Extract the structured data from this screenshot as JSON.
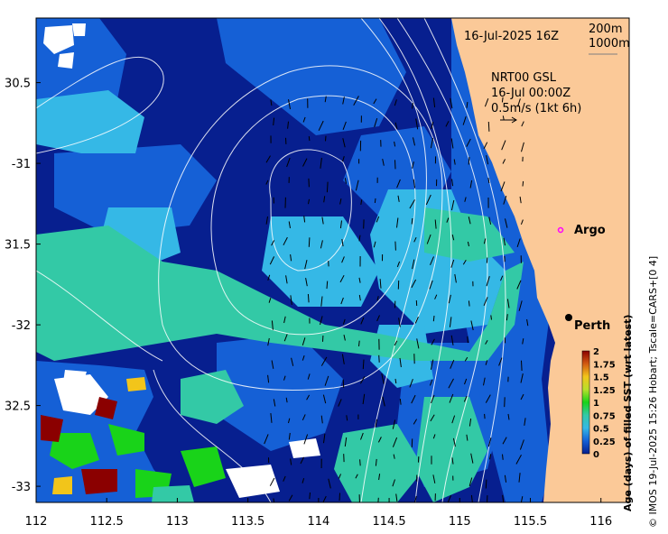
{
  "map": {
    "lon_range": [
      112,
      116.2
    ],
    "lat_range": [
      -33.1,
      -30.1
    ],
    "x_ticks": [
      112,
      112.5,
      113,
      113.5,
      114,
      114.5,
      115,
      115.5,
      116
    ],
    "x_tick_labels": [
      "112",
      "112.5",
      "113",
      "113.5",
      "114",
      "114.5",
      "115",
      "115.5",
      "116"
    ],
    "y_ticks": [
      -30.5,
      -31,
      -31.5,
      -32,
      -32.5,
      -33
    ],
    "y_tick_labels": [
      "30.5",
      "-31",
      "31.5",
      "-32",
      "32.5",
      "-33"
    ],
    "coast_lon": 115.65
  },
  "header": {
    "date_label": "16-Jul-2025 16Z",
    "depth_200": "200m",
    "depth_1000": "1000m",
    "current_line1": "NRT00 GSL",
    "current_line2": "16-Jul 00:00Z",
    "current_line3": "0.5m/s (1kt 6h)"
  },
  "places": [
    {
      "name": "Argo",
      "lon": 115.82,
      "lat": -31.47,
      "marker": "argo-circle"
    },
    {
      "name": "Perth",
      "lon": 115.86,
      "lat": -31.95,
      "marker": "city-dot"
    }
  ],
  "colorbar": {
    "title": "Age (days) of filled SST (wrt latest)",
    "min": 0,
    "max": 2,
    "labels": [
      "2",
      "1.75",
      "1.5",
      "1.25",
      "1",
      "0.75",
      "0.5",
      "0.25",
      "0"
    ],
    "colors": [
      "#8b0000",
      "#d25a12",
      "#f2c51a",
      "#b8e02a",
      "#19d319",
      "#33c9a6",
      "#35b8e6",
      "#1560d6",
      "#071f8f"
    ]
  },
  "credit": "© IMOS 19-Jul-2025 15:26 Hobart; Tscale=CARS+[0 4]",
  "colors": {
    "land": "#fbc998",
    "deep_blue": "#071f8f",
    "mid_blue": "#1560d6",
    "light_blue": "#35b8e6",
    "teal": "#33c9a6",
    "green": "#19d319"
  }
}
